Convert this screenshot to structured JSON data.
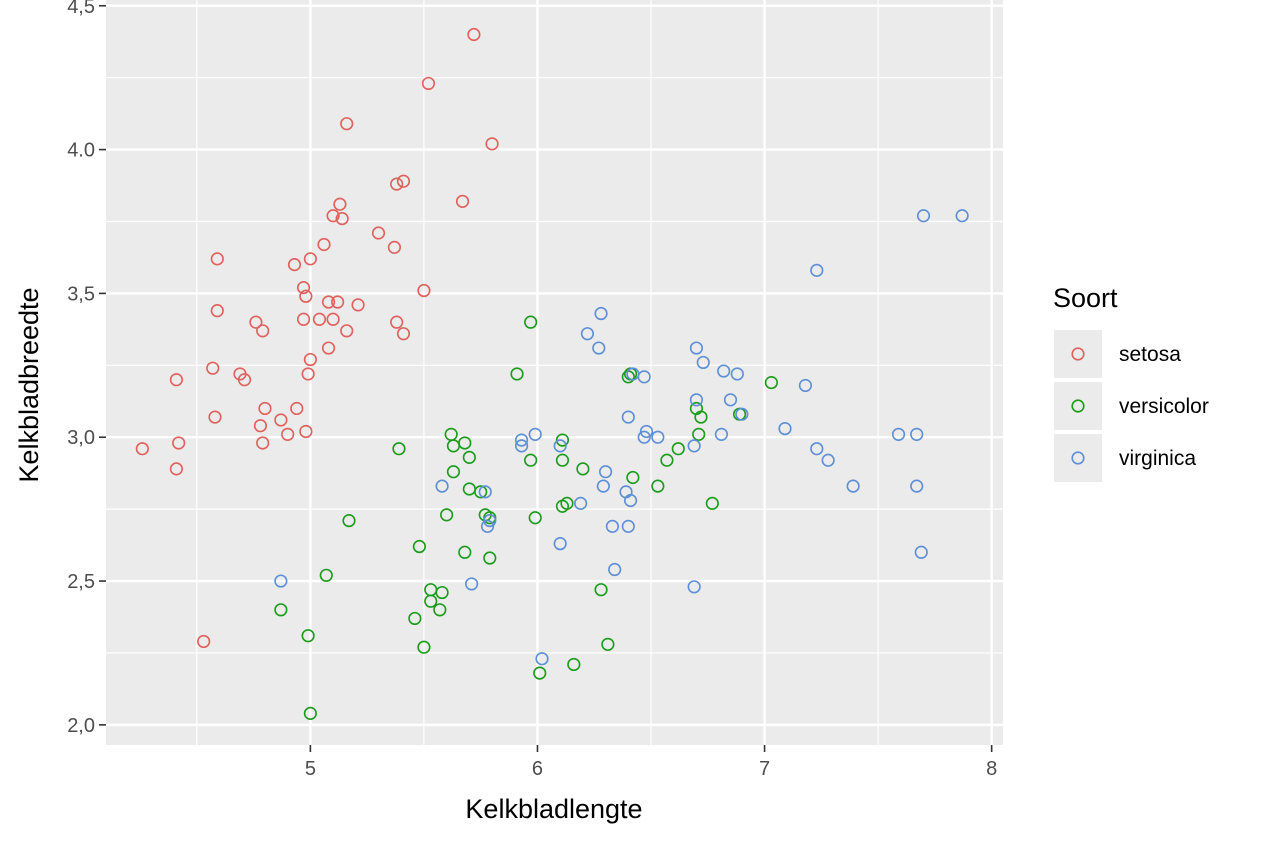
{
  "chart_data": {
    "type": "scatter",
    "xlabel": "Kelkbladlengte",
    "ylabel": "Kelkbladbreedte",
    "xlim": [
      4.1,
      8.05
    ],
    "ylim": [
      1.93,
      4.52
    ],
    "x_ticks": [
      5,
      6,
      7,
      8
    ],
    "x_tick_labels": [
      "5",
      "6",
      "7",
      "8"
    ],
    "y_ticks": [
      2.0,
      2.5,
      3.0,
      3.5,
      4.0,
      4.5
    ],
    "y_tick_labels": [
      "2,0",
      "2,5",
      "3,0",
      "3,5",
      "4.0",
      "4,5"
    ],
    "grid": true,
    "legend_title": "Soort",
    "legend_position": "right",
    "series": [
      {
        "name": "setosa",
        "color": "#e0605c",
        "points": [
          [
            5.72,
            4.4
          ],
          [
            5.52,
            4.23
          ],
          [
            5.16,
            4.09
          ],
          [
            5.8,
            4.02
          ],
          [
            5.41,
            3.89
          ],
          [
            5.38,
            3.88
          ],
          [
            5.67,
            3.82
          ],
          [
            5.13,
            3.81
          ],
          [
            5.1,
            3.77
          ],
          [
            5.14,
            3.76
          ],
          [
            5.3,
            3.71
          ],
          [
            5.06,
            3.67
          ],
          [
            5.37,
            3.66
          ],
          [
            5.0,
            3.62
          ],
          [
            4.59,
            3.62
          ],
          [
            4.93,
            3.6
          ],
          [
            4.97,
            3.52
          ],
          [
            5.5,
            3.51
          ],
          [
            4.98,
            3.49
          ],
          [
            5.08,
            3.47
          ],
          [
            5.12,
            3.47
          ],
          [
            5.21,
            3.46
          ],
          [
            4.59,
            3.44
          ],
          [
            4.97,
            3.41
          ],
          [
            5.04,
            3.41
          ],
          [
            5.1,
            3.41
          ],
          [
            5.38,
            3.4
          ],
          [
            4.76,
            3.4
          ],
          [
            4.79,
            3.37
          ],
          [
            5.16,
            3.37
          ],
          [
            5.41,
            3.36
          ],
          [
            5.08,
            3.31
          ],
          [
            5.0,
            3.27
          ],
          [
            4.57,
            3.24
          ],
          [
            4.99,
            3.22
          ],
          [
            4.69,
            3.22
          ],
          [
            4.71,
            3.2
          ],
          [
            4.41,
            3.2
          ],
          [
            4.8,
            3.1
          ],
          [
            4.94,
            3.1
          ],
          [
            4.58,
            3.07
          ],
          [
            4.87,
            3.06
          ],
          [
            4.78,
            3.04
          ],
          [
            4.98,
            3.02
          ],
          [
            4.9,
            3.01
          ],
          [
            4.79,
            2.98
          ],
          [
            4.42,
            2.98
          ],
          [
            4.26,
            2.96
          ],
          [
            4.41,
            2.89
          ],
          [
            4.53,
            2.29
          ]
        ]
      },
      {
        "name": "versicolor",
        "color": "#1a9c1a",
        "points": [
          [
            5.97,
            3.4
          ],
          [
            7.03,
            3.19
          ],
          [
            5.91,
            3.22
          ],
          [
            6.41,
            3.22
          ],
          [
            6.7,
            3.1
          ],
          [
            6.72,
            3.07
          ],
          [
            6.89,
            3.08
          ],
          [
            6.71,
            3.01
          ],
          [
            5.62,
            3.01
          ],
          [
            6.11,
            2.99
          ],
          [
            5.68,
            2.98
          ],
          [
            5.63,
            2.97
          ],
          [
            5.39,
            2.96
          ],
          [
            6.62,
            2.96
          ],
          [
            5.7,
            2.93
          ],
          [
            5.97,
            2.92
          ],
          [
            6.11,
            2.92
          ],
          [
            6.57,
            2.92
          ],
          [
            6.2,
            2.89
          ],
          [
            5.63,
            2.88
          ],
          [
            6.42,
            2.86
          ],
          [
            6.53,
            2.83
          ],
          [
            5.7,
            2.82
          ],
          [
            5.75,
            2.81
          ],
          [
            6.77,
            2.77
          ],
          [
            6.13,
            2.77
          ],
          [
            6.11,
            2.76
          ],
          [
            5.77,
            2.73
          ],
          [
            5.6,
            2.73
          ],
          [
            5.99,
            2.72
          ],
          [
            5.79,
            2.72
          ],
          [
            5.17,
            2.71
          ],
          [
            5.48,
            2.62
          ],
          [
            5.68,
            2.6
          ],
          [
            5.79,
            2.58
          ],
          [
            5.07,
            2.52
          ],
          [
            6.28,
            2.47
          ],
          [
            5.53,
            2.47
          ],
          [
            5.58,
            2.46
          ],
          [
            5.53,
            2.43
          ],
          [
            4.87,
            2.4
          ],
          [
            5.46,
            2.37
          ],
          [
            4.99,
            2.31
          ],
          [
            6.31,
            2.28
          ],
          [
            5.5,
            2.27
          ],
          [
            6.16,
            2.21
          ],
          [
            6.01,
            2.18
          ],
          [
            5.0,
            2.04
          ],
          [
            5.57,
            2.4
          ],
          [
            6.4,
            3.21
          ]
        ]
      },
      {
        "name": "virginica",
        "color": "#5d8fd6",
        "points": [
          [
            7.7,
            3.77
          ],
          [
            7.87,
            3.77
          ],
          [
            7.23,
            3.58
          ],
          [
            6.28,
            3.43
          ],
          [
            6.22,
            3.36
          ],
          [
            6.27,
            3.31
          ],
          [
            6.7,
            3.31
          ],
          [
            6.73,
            3.26
          ],
          [
            6.82,
            3.23
          ],
          [
            6.88,
            3.22
          ],
          [
            6.47,
            3.21
          ],
          [
            6.42,
            3.22
          ],
          [
            7.18,
            3.18
          ],
          [
            6.85,
            3.13
          ],
          [
            6.7,
            3.13
          ],
          [
            6.9,
            3.08
          ],
          [
            6.4,
            3.07
          ],
          [
            7.09,
            3.03
          ],
          [
            6.48,
            3.02
          ],
          [
            5.99,
            3.01
          ],
          [
            6.81,
            3.01
          ],
          [
            7.59,
            3.01
          ],
          [
            7.67,
            3.01
          ],
          [
            6.53,
            3.0
          ],
          [
            6.47,
            3.0
          ],
          [
            5.93,
            2.99
          ],
          [
            6.69,
            2.97
          ],
          [
            5.93,
            2.97
          ],
          [
            6.1,
            2.97
          ],
          [
            7.23,
            2.96
          ],
          [
            7.28,
            2.92
          ],
          [
            6.3,
            2.88
          ],
          [
            7.39,
            2.83
          ],
          [
            7.67,
            2.83
          ],
          [
            6.29,
            2.83
          ],
          [
            5.58,
            2.83
          ],
          [
            6.39,
            2.81
          ],
          [
            5.77,
            2.81
          ],
          [
            6.41,
            2.78
          ],
          [
            6.19,
            2.77
          ],
          [
            5.79,
            2.71
          ],
          [
            5.78,
            2.69
          ],
          [
            6.33,
            2.69
          ],
          [
            6.4,
            2.69
          ],
          [
            6.1,
            2.63
          ],
          [
            7.69,
            2.6
          ],
          [
            6.34,
            2.54
          ],
          [
            4.87,
            2.5
          ],
          [
            5.71,
            2.49
          ],
          [
            6.69,
            2.48
          ],
          [
            6.02,
            2.23
          ]
        ]
      }
    ]
  }
}
